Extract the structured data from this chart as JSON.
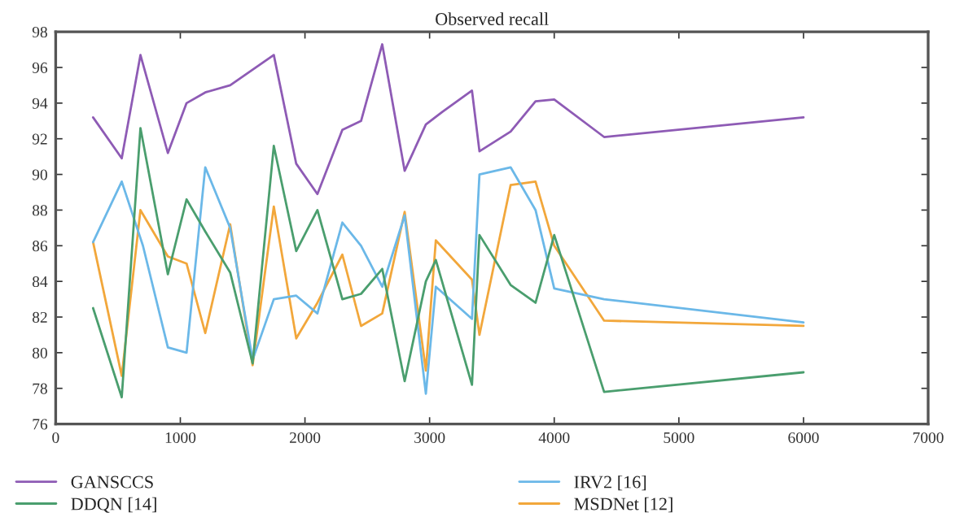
{
  "chart_data": {
    "type": "line",
    "title": "Observed recall",
    "xlim": [
      0,
      7000
    ],
    "xticks": [
      0,
      1000,
      2000,
      3000,
      4000,
      5000,
      6000,
      7000
    ],
    "ylim": [
      76,
      98
    ],
    "yticks": [
      76,
      78,
      80,
      82,
      84,
      86,
      88,
      90,
      92,
      94,
      96,
      98
    ],
    "grid": false,
    "legend": "bottom",
    "marker": "none",
    "line_style": "solid",
    "series": [
      {
        "name": "GANSCCS",
        "color": "#8e5bb5",
        "x": [
          300,
          530,
          680,
          900,
          1050,
          1200,
          1400,
          1750,
          1930,
          2100,
          2300,
          2450,
          2620,
          2800,
          2970,
          3100,
          3340,
          3400,
          3650,
          3850,
          4000,
          4400,
          6000
        ],
        "values": [
          93.2,
          90.9,
          96.7,
          91.2,
          94.0,
          94.6,
          95.0,
          96.7,
          90.6,
          88.9,
          92.5,
          93.0,
          97.3,
          90.2,
          92.8,
          93.5,
          94.7,
          91.3,
          92.4,
          94.1,
          94.2,
          92.1,
          93.2
        ]
      },
      {
        "name": "DDQN [14]",
        "color": "#4a9e6e",
        "x": [
          300,
          530,
          680,
          900,
          1050,
          1200,
          1400,
          1580,
          1750,
          1930,
          2100,
          2300,
          2450,
          2620,
          2800,
          2970,
          3050,
          3340,
          3400,
          3650,
          3850,
          4000,
          4400,
          6000
        ],
        "values": [
          82.5,
          77.5,
          92.6,
          84.4,
          88.6,
          86.8,
          84.5,
          79.4,
          91.6,
          85.7,
          88.0,
          83.0,
          83.3,
          84.7,
          78.4,
          84.0,
          85.2,
          78.2,
          86.6,
          83.8,
          82.8,
          86.6,
          77.8,
          78.9
        ]
      },
      {
        "name": "IRV2 [16]",
        "color": "#6bb8e8",
        "x": [
          300,
          530,
          700,
          900,
          1050,
          1200,
          1400,
          1580,
          1750,
          1930,
          2100,
          2300,
          2450,
          2620,
          2800,
          2970,
          3050,
          3340,
          3400,
          3650,
          3850,
          4000,
          4400,
          6000
        ],
        "values": [
          86.2,
          89.6,
          86.0,
          80.3,
          80.0,
          90.4,
          87.0,
          79.6,
          83.0,
          83.2,
          82.2,
          87.3,
          86.0,
          83.7,
          87.7,
          77.7,
          83.7,
          81.9,
          90.0,
          90.4,
          88.0,
          83.6,
          83.0,
          81.7
        ]
      },
      {
        "name": "MSDNet [12]",
        "color": "#f2a73b",
        "x": [
          300,
          530,
          680,
          900,
          1050,
          1200,
          1400,
          1580,
          1750,
          1930,
          2100,
          2300,
          2450,
          2620,
          2800,
          2970,
          3050,
          3340,
          3400,
          3650,
          3850,
          4000,
          4400,
          6000
        ],
        "values": [
          86.2,
          78.7,
          88.0,
          85.4,
          85.0,
          81.1,
          87.2,
          79.3,
          88.2,
          80.8,
          82.8,
          85.5,
          81.5,
          82.2,
          87.9,
          79.0,
          86.3,
          84.1,
          81.0,
          89.4,
          89.6,
          86.0,
          81.8,
          81.5
        ]
      }
    ]
  }
}
